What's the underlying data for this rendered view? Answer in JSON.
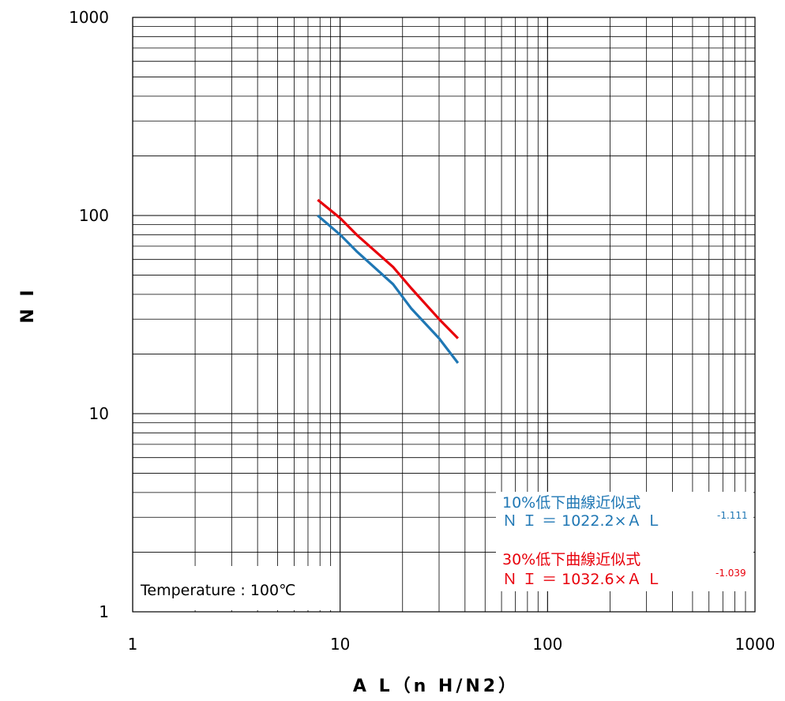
{
  "chart_data": {
    "type": "line",
    "xlabel": "A L（n H/N2）",
    "ylabel": "N I",
    "x_scale": "log",
    "y_scale": "log",
    "xlim": [
      1,
      1000
    ],
    "ylim": [
      1,
      1000
    ],
    "x_tick_labels": [
      "1",
      "10",
      "100",
      "1000"
    ],
    "y_tick_labels": [
      "1",
      "10",
      "100",
      "1000"
    ],
    "grid": true,
    "series": [
      {
        "name": "10%低下曲線近似式",
        "color": "#1f77b4",
        "x": [
          7.8,
          10,
          12,
          18,
          22,
          30,
          37
        ],
        "y": [
          100,
          80,
          66,
          45,
          34,
          24,
          18
        ]
      },
      {
        "name": "30%低下曲線近似式",
        "color": "#e8000b",
        "x": [
          7.8,
          10,
          12,
          18,
          22,
          30,
          37
        ],
        "y": [
          120,
          97,
          80,
          55,
          43,
          30,
          24
        ]
      }
    ],
    "annotations": {
      "temperature": "Temperature : 100℃",
      "formula_blue_title": "10%低下曲線近似式",
      "formula_blue_main": "Ｎ Ｉ ＝ 1022.2×Ａ Ｌ",
      "formula_blue_exp": "-1.111",
      "formula_red_title": "30%低下曲線近似式",
      "formula_red_main": "Ｎ Ｉ ＝ 1032.6×Ａ Ｌ",
      "formula_red_exp": "-1.039"
    }
  }
}
